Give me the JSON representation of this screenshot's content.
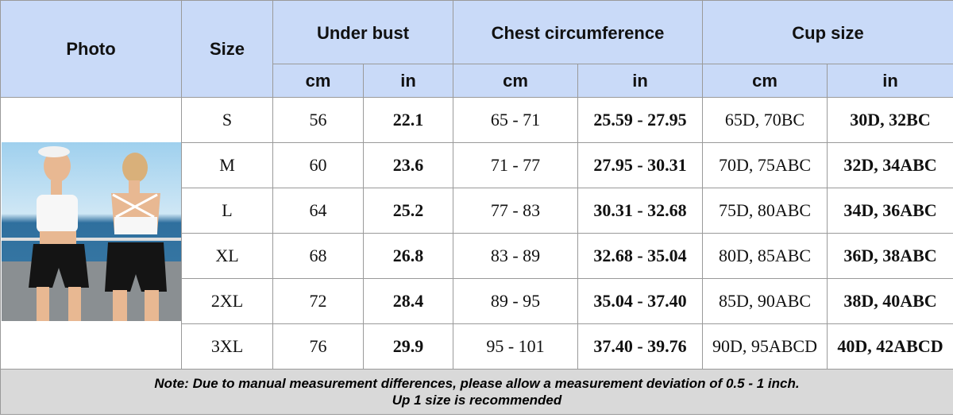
{
  "header": {
    "photo": "Photo",
    "size": "Size",
    "under_bust": "Under bust",
    "chest": "Chest circumference",
    "cup": "Cup size",
    "units": [
      "cm",
      "in",
      "cm",
      "in",
      "cm",
      "in"
    ]
  },
  "rows": [
    [
      "S",
      "56",
      "22.1",
      "65 - 71",
      "25.59 - 27.95",
      "65D, 70BC",
      "30D, 32BC"
    ],
    [
      "M",
      "60",
      "23.6",
      "71 - 77",
      "27.95 - 30.31",
      "70D, 75ABC",
      "32D, 34ABC"
    ],
    [
      "L",
      "64",
      "25.2",
      "77 - 83",
      "30.31 - 32.68",
      "75D, 80ABC",
      "34D, 36ABC"
    ],
    [
      "XL",
      "68",
      "26.8",
      "83 - 89",
      "32.68 - 35.04",
      "80D, 85ABC",
      "36D, 38ABC"
    ],
    [
      "2XL",
      "72",
      "28.4",
      "89 - 95",
      "35.04 - 37.40",
      "85D, 90ABC",
      "38D, 40ABC"
    ],
    [
      "3XL",
      "76",
      "29.9",
      "95 - 101",
      "37.40 - 39.76",
      "90D, 95ABCD",
      "40D, 42ABCD"
    ]
  ],
  "note": [
    "Note: Due to manual measurement differences, please allow a measurement deviation of 0.5 - 1 inch.",
    "Up 1 size is recommended"
  ]
}
